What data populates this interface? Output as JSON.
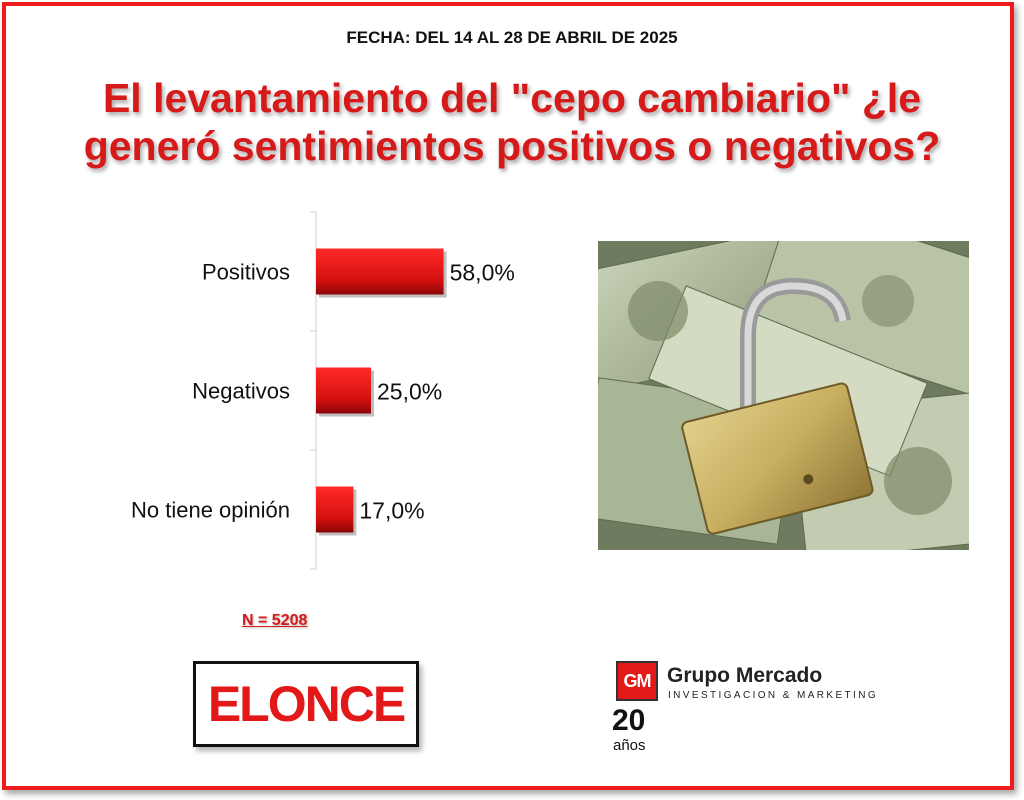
{
  "header": {
    "date": "FECHA: DEL 14 AL 28 DE ABRIL DE 2025",
    "title": "El levantamiento del \"cepo cambiario\" ¿le generó sentimientos positivos o negativos?"
  },
  "chart_data": {
    "type": "bar",
    "orientation": "horizontal",
    "title": "",
    "xlabel": "",
    "ylabel": "",
    "categories": [
      "Positivos",
      "Negativos",
      "No tiene opinión"
    ],
    "values": [
      58.0,
      25.0,
      17.0
    ],
    "value_labels": [
      "58,0%",
      "25,0%",
      "17,0%"
    ],
    "xlim": [
      0,
      100
    ],
    "grid": false,
    "bar_color": "#e31919"
  },
  "sample": {
    "label": "N = 5208"
  },
  "image": {
    "icon": "unlocked-padlock-on-dollar-bills-photo"
  },
  "logos": {
    "elonce": "ELONCE",
    "grupo_mercado": {
      "mark": "GM",
      "name": "Grupo Mercado",
      "subtitle": "INVESTIGACION & MARKETING",
      "anniversary_number": "20",
      "anniversary_word": "años"
    }
  },
  "colors": {
    "accent": "#d61a1a",
    "border": "#ee1c1c"
  }
}
